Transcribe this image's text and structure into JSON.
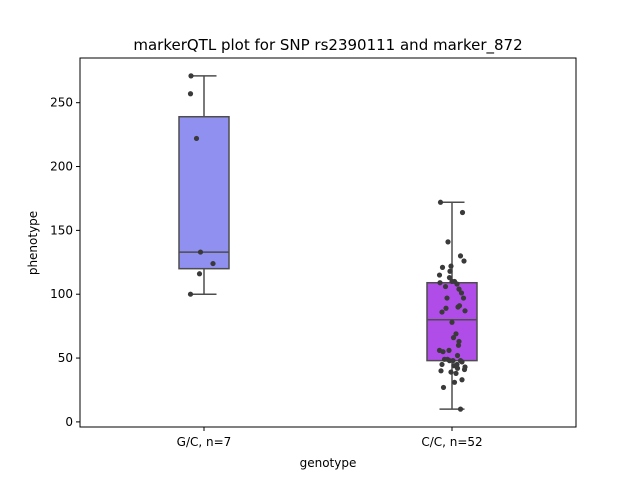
{
  "chart_data": {
    "type": "box",
    "title": "markerQTL plot for SNP rs2390111 and marker_872",
    "xlabel": "genotype",
    "ylabel": "phenotype",
    "ylim": [
      -4,
      285
    ],
    "yticks": [
      0,
      50,
      100,
      150,
      200,
      250
    ],
    "grid": false,
    "categories": [
      "G/C, n=7",
      "C/C, n=52"
    ],
    "colors": {
      "box_fill": [
        "#9090f0",
        "#b04de8"
      ],
      "box_edge": "#4d4d4d",
      "point": "#3a3a3a"
    },
    "boxes": [
      {
        "category": "G/C, n=7",
        "whisker_low": 100,
        "q1": 120,
        "median": 133,
        "q3": 239,
        "whisker_high": 271
      },
      {
        "category": "C/C, n=52",
        "whisker_low": 10,
        "q1": 48,
        "median": 80,
        "q3": 109,
        "whisker_high": 172
      }
    ],
    "points": [
      [
        {
          "x": -0.26,
          "y": 271
        },
        {
          "x": -0.27,
          "y": 257
        },
        {
          "x": -0.15,
          "y": 222
        },
        {
          "x": -0.07,
          "y": 133
        },
        {
          "x": -0.09,
          "y": 116
        },
        {
          "x": 0.18,
          "y": 124
        },
        {
          "x": -0.27,
          "y": 100
        }
      ],
      [
        {
          "x": -0.23,
          "y": 172
        },
        {
          "x": 0.21,
          "y": 164
        },
        {
          "x": -0.08,
          "y": 141
        },
        {
          "x": 0.17,
          "y": 130
        },
        {
          "x": 0.24,
          "y": 126
        },
        {
          "x": -0.02,
          "y": 122
        },
        {
          "x": -0.19,
          "y": 121
        },
        {
          "x": -0.04,
          "y": 118
        },
        {
          "x": -0.25,
          "y": 115
        },
        {
          "x": -0.05,
          "y": 113
        },
        {
          "x": 0.0,
          "y": 110
        },
        {
          "x": 0.05,
          "y": 110
        },
        {
          "x": -0.24,
          "y": 109
        },
        {
          "x": 0.1,
          "y": 108
        },
        {
          "x": -0.13,
          "y": 106
        },
        {
          "x": 0.14,
          "y": 104
        },
        {
          "x": 0.19,
          "y": 101
        },
        {
          "x": -0.1,
          "y": 97
        },
        {
          "x": 0.23,
          "y": 97
        },
        {
          "x": 0.15,
          "y": 91
        },
        {
          "x": 0.12,
          "y": 90
        },
        {
          "x": -0.12,
          "y": 89
        },
        {
          "x": 0.26,
          "y": 87
        },
        {
          "x": -0.2,
          "y": 86
        },
        {
          "x": 0.08,
          "y": 69
        },
        {
          "x": 0.03,
          "y": 66
        },
        {
          "x": 0.14,
          "y": 63
        },
        {
          "x": 0.13,
          "y": 60
        },
        {
          "x": -0.25,
          "y": 56
        },
        {
          "x": -0.06,
          "y": 56
        },
        {
          "x": -0.18,
          "y": 55
        },
        {
          "x": 0.11,
          "y": 52
        },
        {
          "x": -0.15,
          "y": 49
        },
        {
          "x": -0.09,
          "y": 49
        },
        {
          "x": -0.05,
          "y": 48
        },
        {
          "x": 0.02,
          "y": 48
        },
        {
          "x": 0.17,
          "y": 48
        },
        {
          "x": 0.2,
          "y": 47
        },
        {
          "x": 0.1,
          "y": 45
        },
        {
          "x": -0.2,
          "y": 45
        },
        {
          "x": 0.04,
          "y": 44
        },
        {
          "x": 0.26,
          "y": 43
        },
        {
          "x": 0.11,
          "y": 42
        },
        {
          "x": 0.25,
          "y": 41
        },
        {
          "x": -0.22,
          "y": 40
        },
        {
          "x": -0.02,
          "y": 39
        },
        {
          "x": 0.08,
          "y": 38
        },
        {
          "x": 0.2,
          "y": 33
        },
        {
          "x": 0.05,
          "y": 31
        },
        {
          "x": -0.17,
          "y": 27
        },
        {
          "x": 0.17,
          "y": 10
        },
        {
          "x": 0.0,
          "y": 78
        }
      ]
    ]
  }
}
